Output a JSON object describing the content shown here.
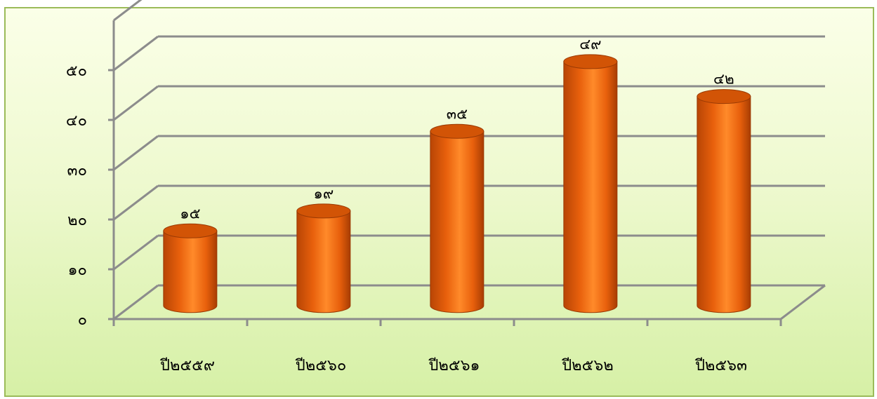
{
  "chart_data": {
    "type": "bar",
    "categories": [
      "ปี๒๕๕๙",
      "ปี๒๕๖๐",
      "ปี๒๕๖๑",
      "ปี๒๕๖๒",
      "ปี๒๕๖๓"
    ],
    "values": [
      15,
      19,
      35,
      49,
      42
    ],
    "value_labels": [
      "๑๕",
      "๑๙",
      "๓๕",
      "๔๙",
      "๔๒"
    ],
    "y_tick_labels": [
      "๐",
      "๑๐",
      "๒๐",
      "๓๐",
      "๔๐",
      "๕๐"
    ],
    "y_ticks": [
      0,
      10,
      20,
      30,
      40,
      50
    ],
    "ylim": [
      0,
      50
    ],
    "grid": true,
    "style": "3d-cylinder",
    "bar_color": "#e8600c",
    "bar_highlight": "#ff9a3c",
    "bar_top_color": "#d25406",
    "grid_color": "#8c8c8c"
  }
}
